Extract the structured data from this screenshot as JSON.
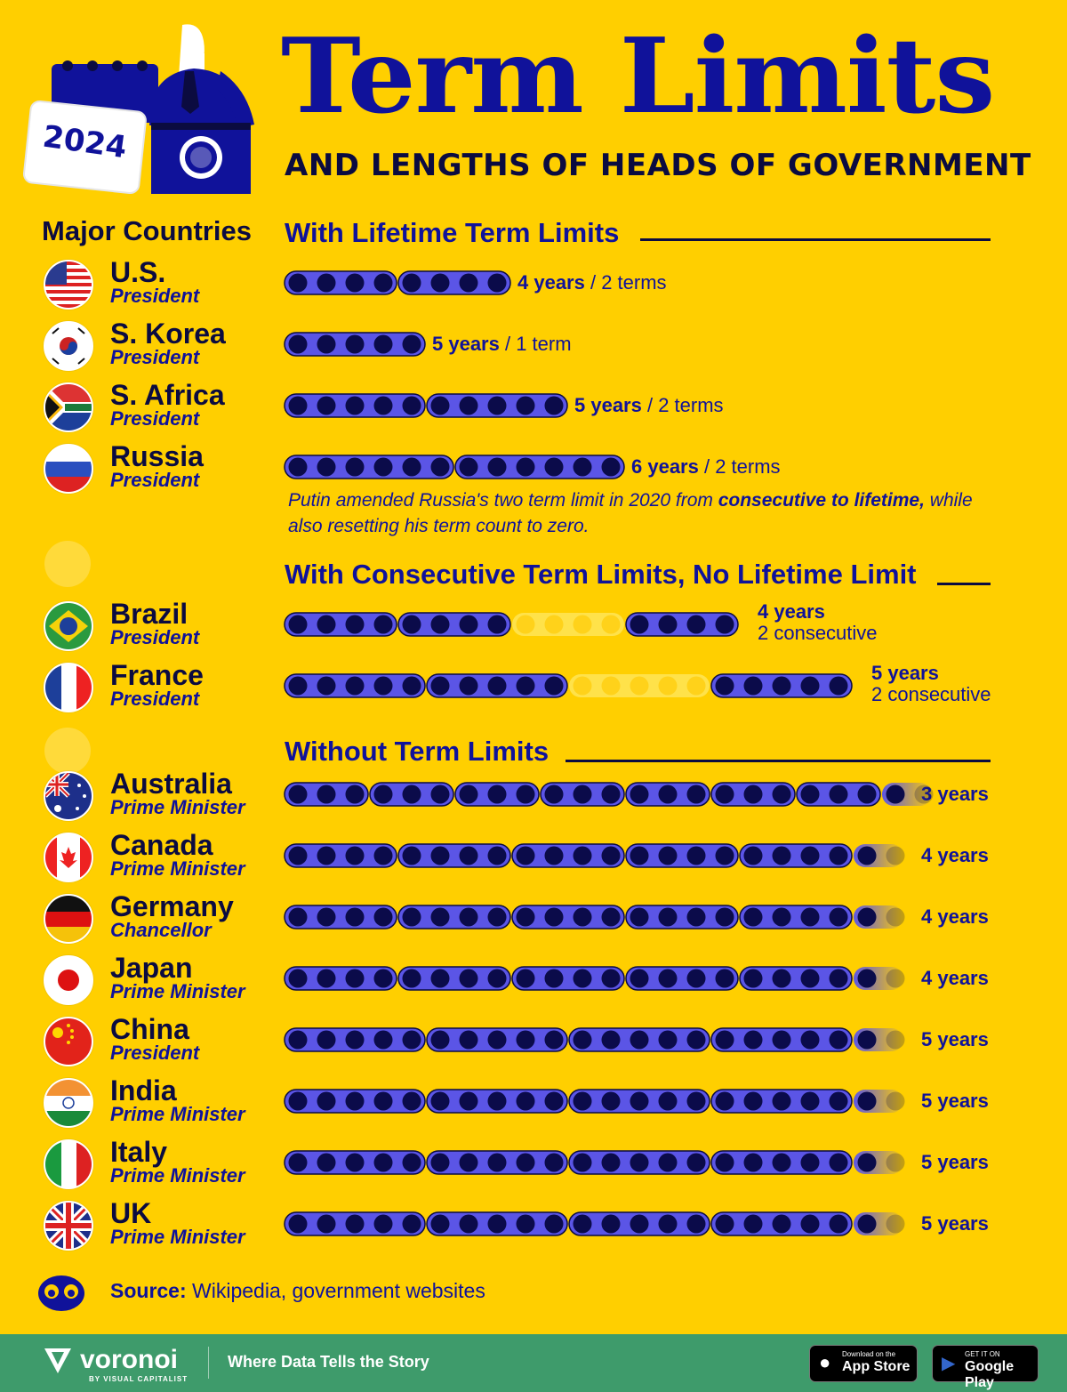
{
  "header": {
    "year_badge": "2024",
    "title": "Term Limits",
    "subtitle": "AND LENGTHS OF HEADS OF GOVERNMENT",
    "column_header": "Major Countries"
  },
  "sections": [
    {
      "title": "With Lifetime Term Limits"
    },
    {
      "title": "With Consecutive Term Limits, No Lifetime Limit"
    },
    {
      "title": "Without Term Limits"
    }
  ],
  "note": {
    "before": "Putin amended Russia's two term limit in 2020 from ",
    "bold": "consecutive to lifetime,",
    "after": " while also resetting his term count to zero."
  },
  "source": {
    "label": "Source:",
    "text": " Wikipedia, government websites"
  },
  "footer": {
    "brand": "voronoi",
    "brand_sub": "BY VISUAL CAPITALIST",
    "tagline": "Where Data Tells the Story",
    "app_store_small": "Download on the",
    "app_store_big": "App Store",
    "google_small": "GET IT ON",
    "google_big": "Google Play"
  },
  "colors": {
    "background": "#FFCF00",
    "term_bar": "#5B55E6",
    "term_dot": "#0B0B4A",
    "gap_bar": "#FFE24A",
    "gap_dot": "#FFD21A",
    "heading": "#10129A"
  },
  "chart_data": {
    "type": "bar",
    "unit": "years",
    "rows": [
      {
        "country": "U.S.",
        "role": "President",
        "flag": "us-flag",
        "section": 0,
        "kind": "lifetime",
        "term_years": 4,
        "terms": 2,
        "label_bold": "4 years",
        "label_rest": " / 2 terms"
      },
      {
        "country": "S. Korea",
        "role": "President",
        "flag": "south-korea-flag",
        "section": 0,
        "kind": "lifetime",
        "term_years": 5,
        "terms": 1,
        "label_bold": "5 years",
        "label_rest": " / 1 term"
      },
      {
        "country": "S. Africa",
        "role": "President",
        "flag": "south-africa-flag",
        "section": 0,
        "kind": "lifetime",
        "term_years": 5,
        "terms": 2,
        "label_bold": "5 years",
        "label_rest": " / 2 terms"
      },
      {
        "country": "Russia",
        "role": "President",
        "flag": "russia-flag",
        "section": 0,
        "kind": "lifetime",
        "term_years": 6,
        "terms": 2,
        "label_bold": "6 years",
        "label_rest": " / 2 terms"
      },
      {
        "country": "Brazil",
        "role": "President",
        "flag": "brazil-flag",
        "section": 1,
        "kind": "consecutive",
        "term_years": 4,
        "terms": 2,
        "label_bold": "4 years",
        "label_line2": "2 consecutive"
      },
      {
        "country": "France",
        "role": "President",
        "flag": "france-flag",
        "section": 1,
        "kind": "consecutive",
        "term_years": 5,
        "terms": 2,
        "label_bold": "5 years",
        "label_line2": "2 consecutive"
      },
      {
        "country": "Australia",
        "role": "Prime Minister",
        "flag": "australia-flag",
        "section": 2,
        "kind": "none",
        "term_years": 3,
        "label_bold": "3 years"
      },
      {
        "country": "Canada",
        "role": "Prime Minister",
        "flag": "canada-flag",
        "section": 2,
        "kind": "none",
        "term_years": 4,
        "label_bold": "4 years"
      },
      {
        "country": "Germany",
        "role": "Chancellor",
        "flag": "germany-flag",
        "section": 2,
        "kind": "none",
        "term_years": 4,
        "label_bold": "4 years"
      },
      {
        "country": "Japan",
        "role": "Prime Minister",
        "flag": "japan-flag",
        "section": 2,
        "kind": "none",
        "term_years": 4,
        "label_bold": "4 years"
      },
      {
        "country": "China",
        "role": "President",
        "flag": "china-flag",
        "section": 2,
        "kind": "none",
        "term_years": 5,
        "label_bold": "5 years"
      },
      {
        "country": "India",
        "role": "Prime Minister",
        "flag": "india-flag",
        "section": 2,
        "kind": "none",
        "term_years": 5,
        "label_bold": "5 years"
      },
      {
        "country": "Italy",
        "role": "Prime Minister",
        "flag": "italy-flag",
        "section": 2,
        "kind": "none",
        "term_years": 5,
        "label_bold": "5 years"
      },
      {
        "country": "UK",
        "role": "Prime Minister",
        "flag": "uk-flag",
        "section": 2,
        "kind": "none",
        "term_years": 5,
        "label_bold": "5 years"
      }
    ]
  }
}
